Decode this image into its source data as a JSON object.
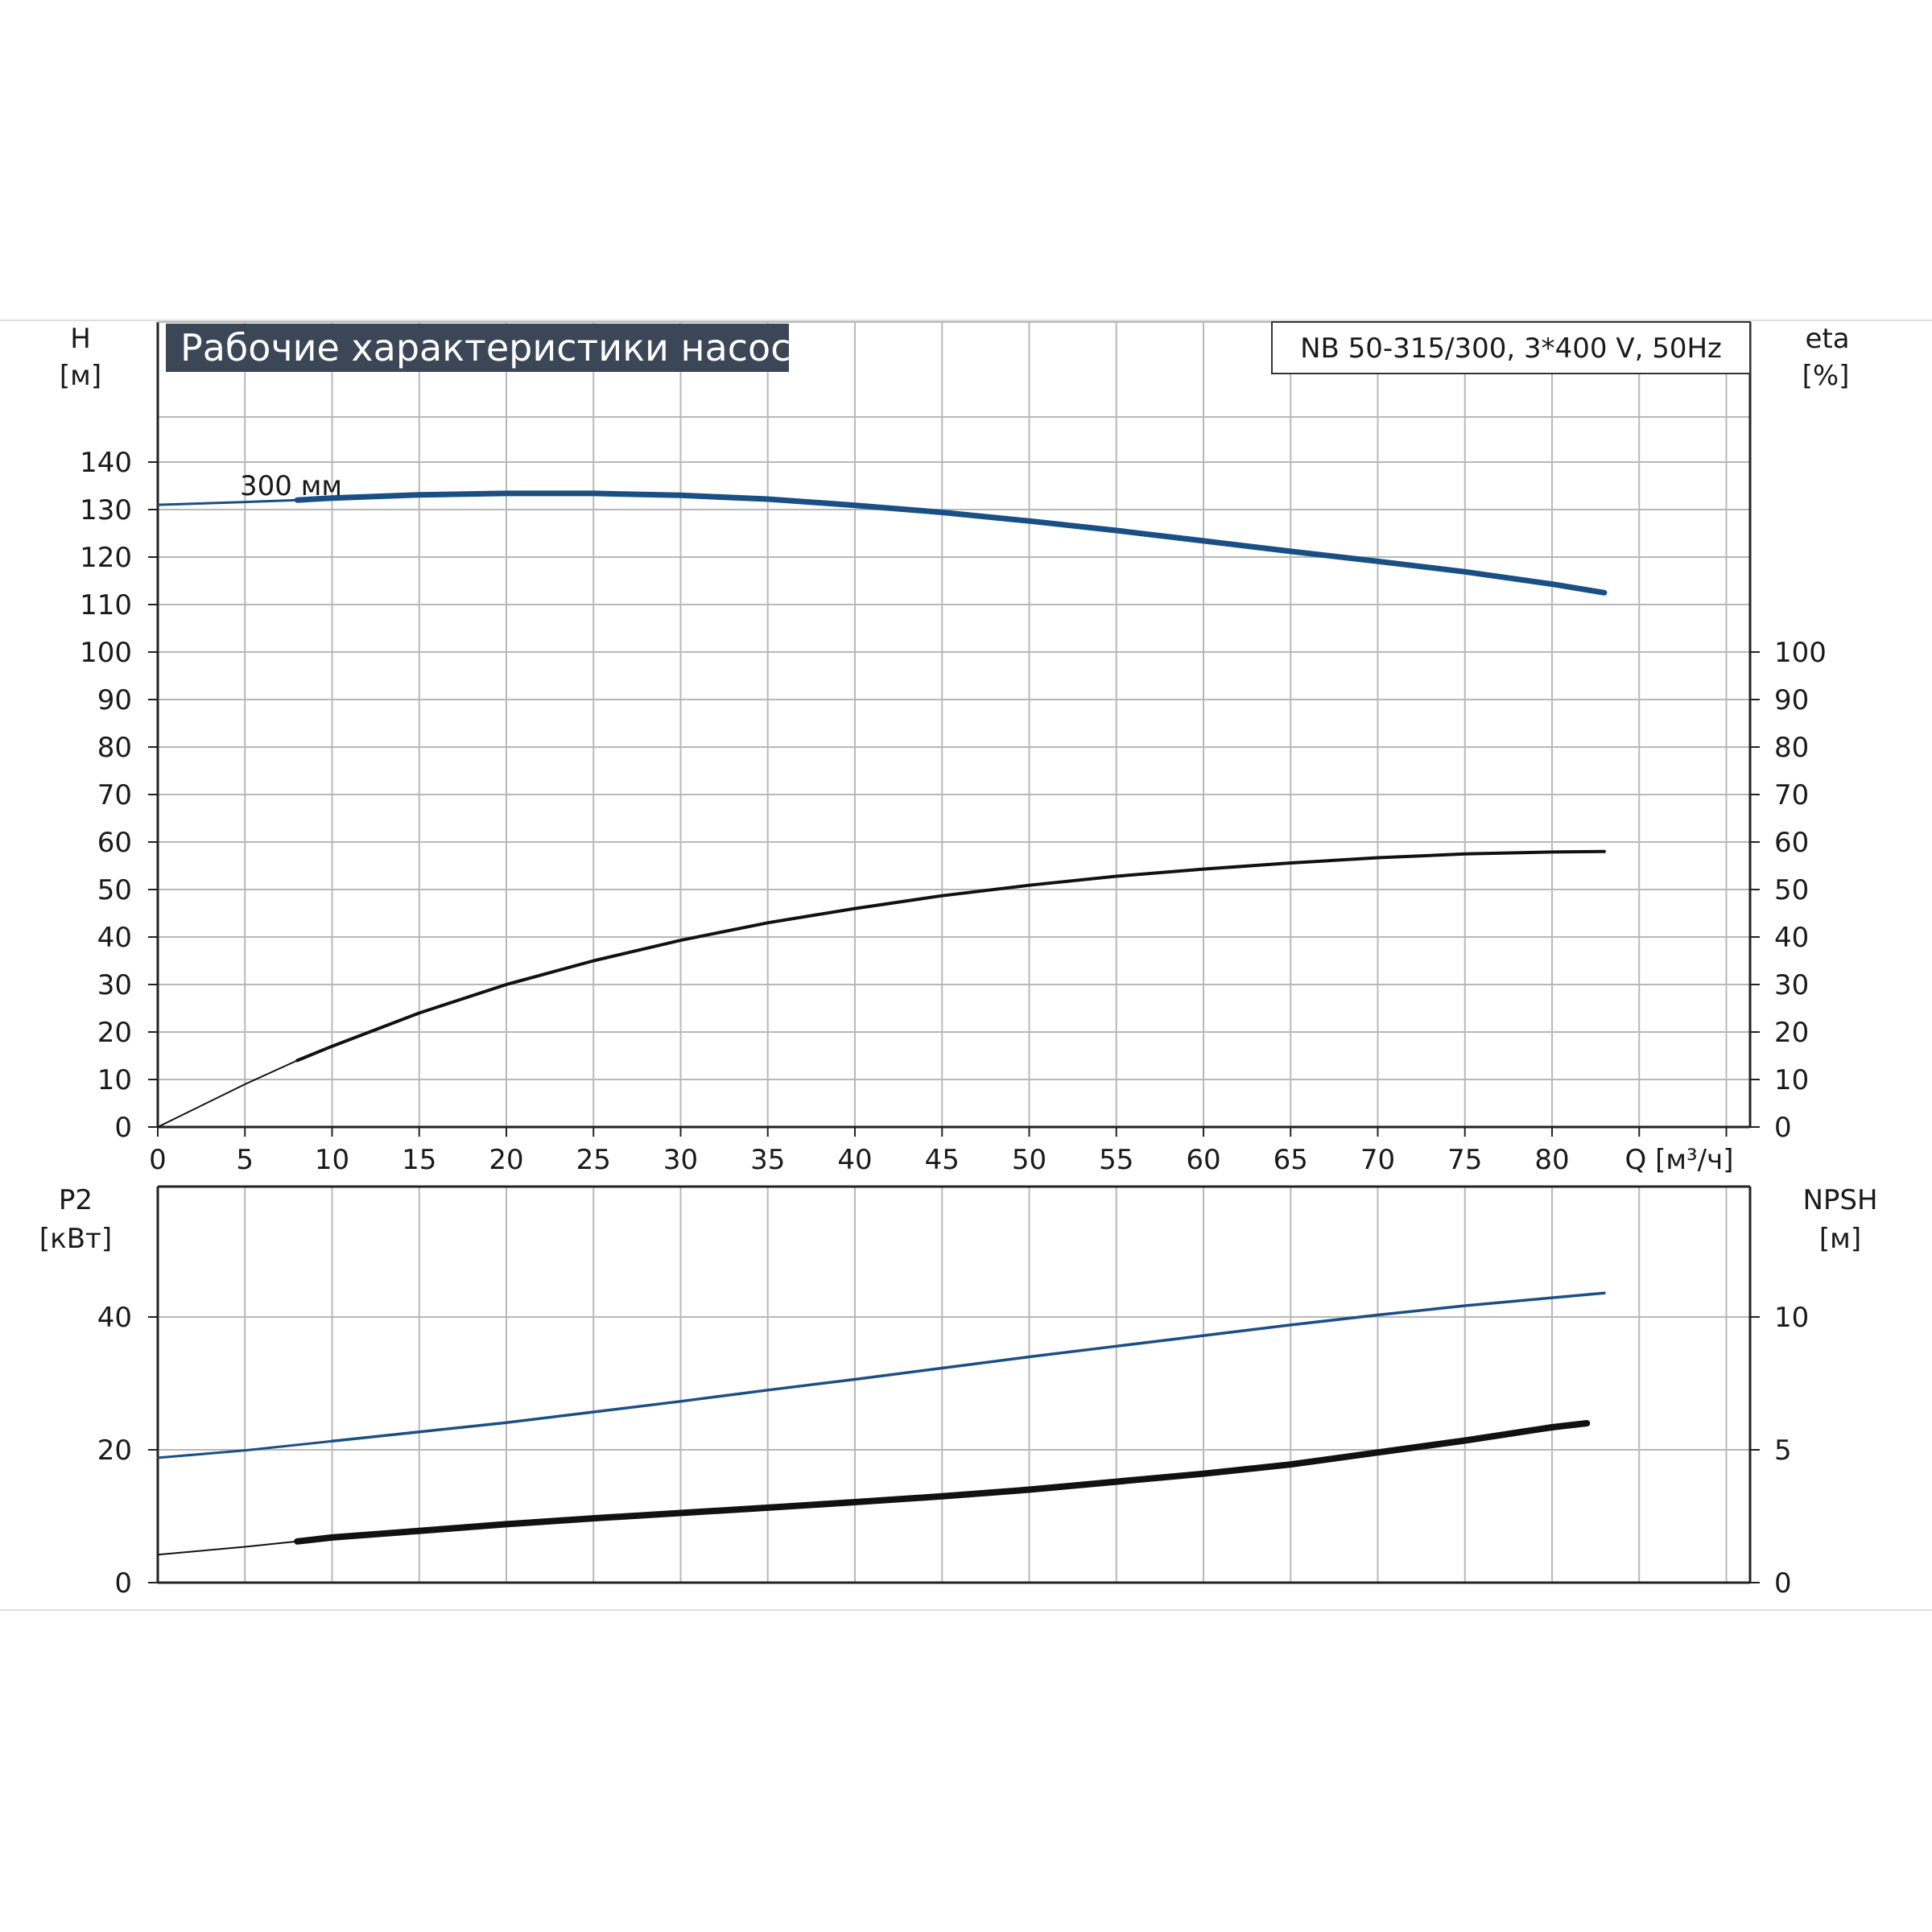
{
  "colors": {
    "grid": "#b8b8b8",
    "axis": "#222222",
    "title_bg": "#3b4656",
    "blue": "#1a4f86",
    "black": "#111111"
  },
  "chart_data": [
    {
      "type": "line",
      "title": "Рабочие характеристики насоса",
      "subtitle": "NB 50-315/300, 3*400 V, 50Hz",
      "ylabel_left": "H",
      "ylabel_left_unit": "[м]",
      "ylabel_right": "eta",
      "ylabel_right_unit": "[%]",
      "xlabel": "Q [м³/ч]",
      "xlim": [
        0,
        90
      ],
      "ylim": [
        0,
        140
      ],
      "x_ticks": [
        "0",
        "5",
        "10",
        "15",
        "20",
        "25",
        "30",
        "35",
        "40",
        "45",
        "50",
        "55",
        "60",
        "65",
        "70",
        "75",
        "80"
      ],
      "y_ticks_left": [
        "0",
        "10",
        "20",
        "30",
        "40",
        "50",
        "60",
        "70",
        "80",
        "90",
        "100",
        "110",
        "120",
        "130",
        "140"
      ],
      "y_ticks_right": [
        "0",
        "10",
        "20",
        "30",
        "40",
        "50",
        "60",
        "70",
        "80",
        "90",
        "100"
      ],
      "grid": true,
      "annotation": "300 мм",
      "series": [
        {
          "key": "H",
          "axis": "left",
          "color": "blue",
          "x": [
            0,
            5,
            8,
            10,
            15,
            20,
            25,
            30,
            35,
            40,
            45,
            50,
            55,
            60,
            65,
            70,
            75,
            80,
            83
          ],
          "y": [
            131,
            131.6,
            132,
            132.4,
            133.1,
            133.4,
            133.4,
            133,
            132.2,
            130.9,
            129.4,
            127.6,
            125.6,
            123.4,
            121.2,
            119.1,
            116.9,
            114.3,
            112.5
          ]
        },
        {
          "key": "eta",
          "axis": "right",
          "color": "black",
          "x": [
            0,
            5,
            8,
            10,
            15,
            20,
            25,
            30,
            35,
            40,
            45,
            50,
            55,
            60,
            65,
            70,
            75,
            80,
            83
          ],
          "y": [
            0,
            9,
            14,
            17,
            24,
            30,
            35,
            39.3,
            43,
            46,
            48.7,
            50.9,
            52.8,
            54.3,
            55.6,
            56.7,
            57.5,
            57.9,
            58
          ]
        }
      ]
    },
    {
      "type": "line",
      "ylabel_left": "P2",
      "ylabel_left_unit": "[кВт]",
      "ylabel_right": "NPSH",
      "ylabel_right_unit": "[м]",
      "xlim": [
        0,
        90
      ],
      "ylim": [
        0,
        60
      ],
      "y_ticks_left": [
        "0",
        "20",
        "40"
      ],
      "y_ticks_right": [
        "0",
        "5",
        "10"
      ],
      "grid": true,
      "series": [
        {
          "key": "P2",
          "axis": "left",
          "color": "blue",
          "x": [
            0,
            5,
            10,
            15,
            20,
            25,
            30,
            35,
            40,
            45,
            50,
            55,
            60,
            65,
            70,
            75,
            80,
            83
          ],
          "y": [
            18.8,
            19.9,
            21.3,
            22.7,
            24.1,
            25.7,
            27.3,
            29,
            30.6,
            32.3,
            34,
            35.6,
            37.2,
            38.8,
            40.3,
            41.7,
            42.9,
            43.6
          ]
        },
        {
          "key": "NPSH",
          "axis": "right",
          "color": "black",
          "x": [
            0,
            5,
            8,
            10,
            15,
            20,
            25,
            30,
            35,
            40,
            45,
            50,
            55,
            60,
            65,
            70,
            75,
            80,
            82
          ],
          "y": [
            1.05,
            1.35,
            1.55,
            1.7,
            1.95,
            2.2,
            2.42,
            2.62,
            2.82,
            3.03,
            3.25,
            3.5,
            3.8,
            4.1,
            4.45,
            4.9,
            5.35,
            5.85,
            6.0
          ]
        }
      ]
    }
  ]
}
